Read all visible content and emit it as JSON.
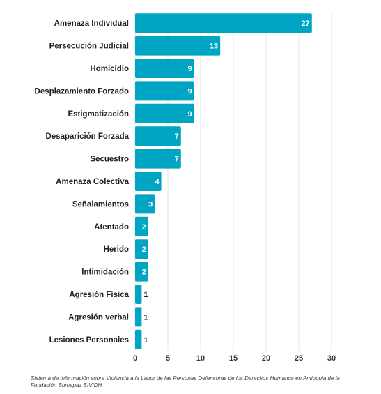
{
  "chart_data": {
    "type": "bar",
    "orientation": "horizontal",
    "categories": [
      "Amenaza Individual",
      "Persecución Judicial",
      "Homicidio",
      "Desplazamiento Forzado",
      "Estigmatización",
      "Desaparición Forzada",
      "Secuestro",
      "Amenaza Colectiva",
      "Señalamientos",
      "Atentado",
      "Herido",
      "Intimidación",
      "Agresión Física",
      "Agresión verbal",
      "Lesiones Personales"
    ],
    "values": [
      27,
      13,
      9,
      9,
      9,
      7,
      7,
      4,
      3,
      2,
      2,
      2,
      1,
      1,
      1
    ],
    "xlim": [
      0,
      30
    ],
    "xticks": [
      0,
      5,
      10,
      15,
      20,
      25,
      30
    ],
    "grid": true,
    "bar_color": "#00a5c4"
  },
  "source": "Sistema de Información sobre Violencia a la Labor de las Personas Defensoras de los Derechos Humanos en Antioquia de la Fundación Sumapaz SIVIDH"
}
